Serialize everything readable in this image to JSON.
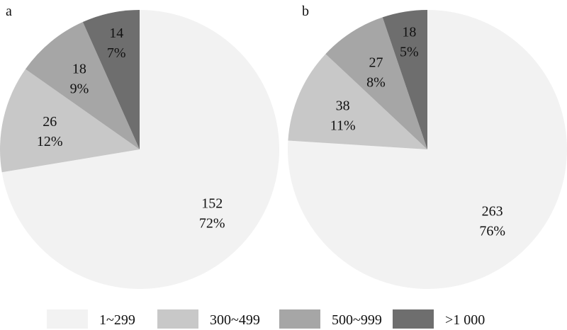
{
  "chart_data": [
    {
      "type": "pie",
      "panel": "a",
      "start_angle_deg": 0,
      "direction": "clockwise",
      "categories": [
        "1~299",
        "300~499",
        "500~999",
        ">1 000"
      ],
      "values": [
        152,
        26,
        18,
        14
      ],
      "percent_labels": [
        "72%",
        "12%",
        "9%",
        "7%"
      ],
      "colors": [
        "#f2f2f2",
        "#c8c8c8",
        "#a6a6a6",
        "#6e6e6e"
      ]
    },
    {
      "type": "pie",
      "panel": "b",
      "start_angle_deg": 0,
      "direction": "clockwise",
      "categories": [
        "1~299",
        "300~499",
        "500~999",
        ">1 000"
      ],
      "values": [
        263,
        38,
        27,
        18
      ],
      "percent_labels": [
        "76%",
        "11%",
        "8%",
        "5%"
      ],
      "colors": [
        "#f2f2f2",
        "#c8c8c8",
        "#a6a6a6",
        "#6e6e6e"
      ]
    }
  ],
  "legend": {
    "placement": "bottom",
    "items": [
      {
        "label": "1~299",
        "color": "#f2f2f2"
      },
      {
        "label": "300~499",
        "color": "#c8c8c8"
      },
      {
        "label": "500~999",
        "color": "#a6a6a6"
      },
      {
        "label": ">1 000",
        "color": "#6e6e6e"
      }
    ]
  }
}
